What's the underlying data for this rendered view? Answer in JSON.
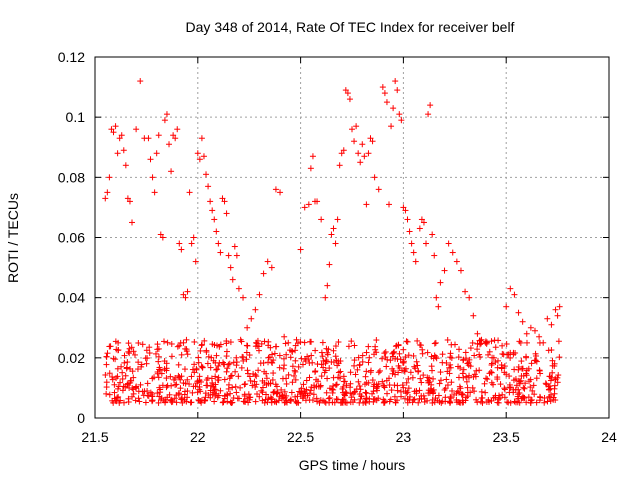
{
  "chart_data": {
    "type": "scatter",
    "title": "Day 348 of 2014, Rate Of TEC Index for receiver belf",
    "xlabel": "GPS time / hours",
    "ylabel": "ROTI / TECUs",
    "xlim": [
      21.5,
      24
    ],
    "ylim": [
      0,
      0.12
    ],
    "xticks": [
      21.5,
      22,
      22.5,
      23,
      23.5,
      24
    ],
    "xtick_labels": [
      "21.5",
      "22",
      "22.5",
      "23",
      "23.5",
      "24"
    ],
    "yticks": [
      0,
      0.02,
      0.04,
      0.06,
      0.08,
      0.1,
      0.12
    ],
    "ytick_labels": [
      "0",
      "0.02",
      "0.04",
      "0.06",
      "0.08",
      "0.1",
      "0.12"
    ],
    "grid": true,
    "marker": "+",
    "color": "#ff0000",
    "series": [
      {
        "name": "ROTI",
        "points": [
          [
            21.55,
            0.073
          ],
          [
            21.56,
            0.075
          ],
          [
            21.57,
            0.08
          ],
          [
            21.58,
            0.096
          ],
          [
            21.59,
            0.095
          ],
          [
            21.6,
            0.097
          ],
          [
            21.61,
            0.088
          ],
          [
            21.62,
            0.093
          ],
          [
            21.63,
            0.094
          ],
          [
            21.64,
            0.089
          ],
          [
            21.65,
            0.084
          ],
          [
            21.66,
            0.073
          ],
          [
            21.67,
            0.072
          ],
          [
            21.68,
            0.065
          ],
          [
            21.7,
            0.096
          ],
          [
            21.72,
            0.112
          ],
          [
            21.74,
            0.093
          ],
          [
            21.76,
            0.093
          ],
          [
            21.77,
            0.086
          ],
          [
            21.78,
            0.08
          ],
          [
            21.79,
            0.075
          ],
          [
            21.8,
            0.088
          ],
          [
            21.81,
            0.094
          ],
          [
            21.82,
            0.061
          ],
          [
            21.83,
            0.06
          ],
          [
            21.84,
            0.099
          ],
          [
            21.85,
            0.101
          ],
          [
            21.86,
            0.091
          ],
          [
            21.87,
            0.082
          ],
          [
            21.88,
            0.094
          ],
          [
            21.89,
            0.093
          ],
          [
            21.9,
            0.096
          ],
          [
            21.91,
            0.058
          ],
          [
            21.92,
            0.056
          ],
          [
            21.93,
            0.041
          ],
          [
            21.94,
            0.04
          ],
          [
            21.95,
            0.042
          ],
          [
            21.96,
            0.075
          ],
          [
            21.97,
            0.058
          ],
          [
            21.98,
            0.06
          ],
          [
            21.99,
            0.052
          ],
          [
            22.0,
            0.088
          ],
          [
            22.01,
            0.086
          ],
          [
            22.02,
            0.093
          ],
          [
            22.03,
            0.087
          ],
          [
            22.04,
            0.081
          ],
          [
            22.05,
            0.077
          ],
          [
            22.06,
            0.072
          ],
          [
            22.07,
            0.069
          ],
          [
            22.08,
            0.066
          ],
          [
            22.09,
            0.062
          ],
          [
            22.1,
            0.058
          ],
          [
            22.11,
            0.055
          ],
          [
            22.12,
            0.073
          ],
          [
            22.13,
            0.072
          ],
          [
            22.14,
            0.068
          ],
          [
            22.15,
            0.054
          ],
          [
            22.16,
            0.05
          ],
          [
            22.17,
            0.046
          ],
          [
            22.18,
            0.057
          ],
          [
            22.19,
            0.054
          ],
          [
            22.2,
            0.043
          ],
          [
            22.22,
            0.04
          ],
          [
            22.24,
            0.03
          ],
          [
            22.26,
            0.033
          ],
          [
            22.28,
            0.036
          ],
          [
            22.3,
            0.041
          ],
          [
            22.32,
            0.048
          ],
          [
            22.34,
            0.052
          ],
          [
            22.36,
            0.05
          ],
          [
            22.38,
            0.076
          ],
          [
            22.4,
            0.075
          ],
          [
            22.42,
            0.027
          ],
          [
            22.44,
            0.025
          ],
          [
            22.46,
            0.022
          ],
          [
            22.48,
            0.026
          ],
          [
            22.5,
            0.056
          ],
          [
            22.52,
            0.07
          ],
          [
            22.54,
            0.071
          ],
          [
            22.55,
            0.083
          ],
          [
            22.56,
            0.087
          ],
          [
            22.57,
            0.072
          ],
          [
            22.58,
            0.072
          ],
          [
            22.6,
            0.066
          ],
          [
            22.62,
            0.04
          ],
          [
            22.63,
            0.044
          ],
          [
            22.64,
            0.051
          ],
          [
            22.65,
            0.061
          ],
          [
            22.66,
            0.063
          ],
          [
            22.67,
            0.058
          ],
          [
            22.68,
            0.066
          ],
          [
            22.69,
            0.084
          ],
          [
            22.7,
            0.088
          ],
          [
            22.71,
            0.089
          ],
          [
            22.72,
            0.109
          ],
          [
            22.73,
            0.108
          ],
          [
            22.74,
            0.106
          ],
          [
            22.75,
            0.096
          ],
          [
            22.76,
            0.092
          ],
          [
            22.77,
            0.097
          ],
          [
            22.78,
            0.088
          ],
          [
            22.79,
            0.085
          ],
          [
            22.8,
            0.091
          ],
          [
            22.81,
            0.087
          ],
          [
            22.82,
            0.071
          ],
          [
            22.83,
            0.088
          ],
          [
            22.84,
            0.093
          ],
          [
            22.85,
            0.092
          ],
          [
            22.86,
            0.08
          ],
          [
            22.88,
            0.076
          ],
          [
            22.9,
            0.11
          ],
          [
            22.91,
            0.108
          ],
          [
            22.92,
            0.105
          ],
          [
            22.93,
            0.071
          ],
          [
            22.94,
            0.097
          ],
          [
            22.95,
            0.103
          ],
          [
            22.96,
            0.112
          ],
          [
            22.97,
            0.109
          ],
          [
            22.98,
            0.101
          ],
          [
            22.99,
            0.099
          ],
          [
            23.0,
            0.07
          ],
          [
            23.01,
            0.069
          ],
          [
            23.02,
            0.066
          ],
          [
            23.03,
            0.062
          ],
          [
            23.04,
            0.058
          ],
          [
            23.05,
            0.055
          ],
          [
            23.06,
            0.052
          ],
          [
            23.08,
            0.063
          ],
          [
            23.09,
            0.066
          ],
          [
            23.1,
            0.065
          ],
          [
            23.11,
            0.058
          ],
          [
            23.12,
            0.101
          ],
          [
            23.13,
            0.104
          ],
          [
            23.14,
            0.061
          ],
          [
            23.15,
            0.054
          ],
          [
            23.16,
            0.04
          ],
          [
            23.17,
            0.037
          ],
          [
            23.18,
            0.045
          ],
          [
            23.2,
            0.049
          ],
          [
            23.22,
            0.058
          ],
          [
            23.24,
            0.055
          ],
          [
            23.26,
            0.052
          ],
          [
            23.28,
            0.049
          ],
          [
            23.3,
            0.042
          ],
          [
            23.32,
            0.04
          ],
          [
            23.34,
            0.034
          ],
          [
            23.36,
            0.028
          ],
          [
            23.38,
            0.026
          ],
          [
            23.4,
            0.025
          ],
          [
            23.42,
            0.022
          ],
          [
            23.44,
            0.02
          ],
          [
            23.46,
            0.019
          ],
          [
            23.48,
            0.024
          ],
          [
            23.5,
            0.037
          ],
          [
            23.52,
            0.043
          ],
          [
            23.54,
            0.041
          ],
          [
            23.56,
            0.035
          ],
          [
            23.58,
            0.032
          ],
          [
            23.6,
            0.028
          ],
          [
            23.62,
            0.03
          ],
          [
            23.64,
            0.029
          ],
          [
            23.66,
            0.027
          ],
          [
            23.68,
            0.025
          ],
          [
            23.7,
            0.033
          ],
          [
            23.72,
            0.031
          ],
          [
            23.74,
            0.036
          ],
          [
            23.75,
            0.034
          ],
          [
            23.76,
            0.037
          ]
        ],
        "background_band": {
          "x_start": 21.55,
          "x_end": 23.76,
          "y_low": 0.005,
          "y_high": 0.026,
          "count": 1100
        }
      }
    ]
  }
}
